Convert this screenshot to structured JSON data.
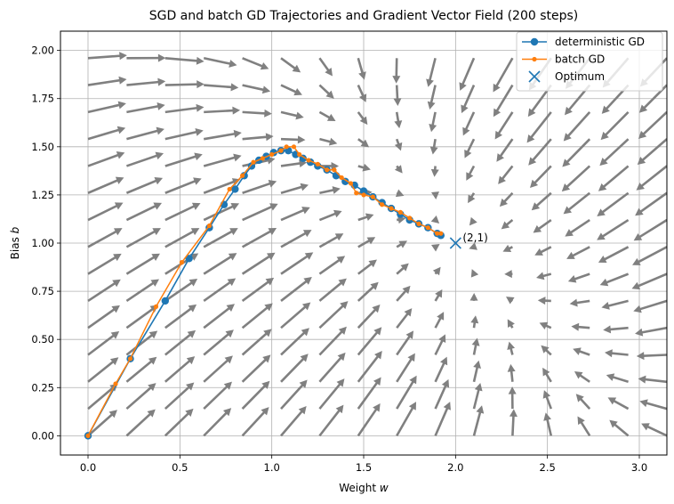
{
  "chart_data": {
    "type": "line",
    "title": "SGD and batch GD Trajectories and Gradient Vector Field (200 steps)",
    "xlabel": "Weight w",
    "ylabel": "Bias b",
    "xlim": [
      -0.15,
      3.15
    ],
    "ylim": [
      -0.1,
      2.1
    ],
    "x_ticks": [
      "0.0",
      "0.5",
      "1.0",
      "1.5",
      "2.0",
      "2.5",
      "3.0"
    ],
    "y_ticks": [
      "0.00",
      "0.25",
      "0.50",
      "0.75",
      "1.00",
      "1.25",
      "1.50",
      "1.75",
      "2.00"
    ],
    "grid": true,
    "legend_position": "top-right",
    "colors": {
      "deterministic": "#1f77b4",
      "batch": "#ff7f0e",
      "quiver": "#808080",
      "grid": "#b0b0b0"
    },
    "series": [
      {
        "name": "deterministic GD",
        "marker": "circle",
        "points": [
          [
            0.0,
            0.0
          ],
          [
            0.23,
            0.4
          ],
          [
            0.42,
            0.7
          ],
          [
            0.55,
            0.92
          ],
          [
            0.66,
            1.08
          ],
          [
            0.74,
            1.2
          ],
          [
            0.8,
            1.28
          ],
          [
            0.85,
            1.35
          ],
          [
            0.89,
            1.4
          ],
          [
            0.93,
            1.43
          ],
          [
            0.97,
            1.45
          ],
          [
            1.01,
            1.47
          ],
          [
            1.05,
            1.48
          ],
          [
            1.09,
            1.48
          ],
          [
            1.13,
            1.46
          ],
          [
            1.17,
            1.44
          ],
          [
            1.21,
            1.42
          ],
          [
            1.25,
            1.4
          ],
          [
            1.3,
            1.38
          ],
          [
            1.35,
            1.35
          ],
          [
            1.4,
            1.32
          ],
          [
            1.45,
            1.3
          ],
          [
            1.5,
            1.27
          ],
          [
            1.55,
            1.24
          ],
          [
            1.6,
            1.21
          ],
          [
            1.65,
            1.18
          ],
          [
            1.7,
            1.15
          ],
          [
            1.75,
            1.12
          ],
          [
            1.8,
            1.1
          ],
          [
            1.85,
            1.08
          ],
          [
            1.9,
            1.05
          ],
          [
            1.92,
            1.04
          ]
        ]
      },
      {
        "name": "batch GD",
        "marker": "small-circle",
        "points": [
          [
            0.0,
            0.0
          ],
          [
            0.15,
            0.27
          ],
          [
            0.23,
            0.4
          ],
          [
            0.37,
            0.67
          ],
          [
            0.51,
            0.9
          ],
          [
            0.66,
            1.09
          ],
          [
            0.77,
            1.28
          ],
          [
            0.84,
            1.35
          ],
          [
            0.9,
            1.42
          ],
          [
            0.95,
            1.44
          ],
          [
            1.0,
            1.46
          ],
          [
            1.05,
            1.48
          ],
          [
            1.08,
            1.5
          ],
          [
            1.12,
            1.5
          ],
          [
            1.15,
            1.46
          ],
          [
            1.2,
            1.43
          ],
          [
            1.25,
            1.41
          ],
          [
            1.3,
            1.38
          ],
          [
            1.34,
            1.38
          ],
          [
            1.38,
            1.34
          ],
          [
            1.43,
            1.31
          ],
          [
            1.46,
            1.26
          ],
          [
            1.5,
            1.25
          ],
          [
            1.55,
            1.24
          ],
          [
            1.6,
            1.2
          ],
          [
            1.65,
            1.18
          ],
          [
            1.7,
            1.16
          ],
          [
            1.75,
            1.13
          ],
          [
            1.8,
            1.1
          ],
          [
            1.85,
            1.08
          ],
          [
            1.9,
            1.05
          ],
          [
            1.92,
            1.05
          ]
        ]
      }
    ],
    "optimum": {
      "name": "Optimum",
      "x": 2.0,
      "y": 1.0,
      "label": "(2,1)"
    },
    "vector_field": {
      "description": "gradient direction arrows on grid",
      "x_grid": [
        0.0,
        0.21,
        0.42,
        0.63,
        0.84,
        1.05,
        1.26,
        1.47,
        1.68,
        1.89,
        2.1,
        2.31,
        2.52,
        2.73,
        2.94,
        3.15
      ],
      "y_grid": [
        0.0,
        0.14,
        0.28,
        0.42,
        0.56,
        0.7,
        0.84,
        0.98,
        1.12,
        1.26,
        1.4,
        1.54,
        1.68,
        1.82,
        1.96
      ],
      "center": [
        2.0,
        1.0
      ]
    }
  }
}
